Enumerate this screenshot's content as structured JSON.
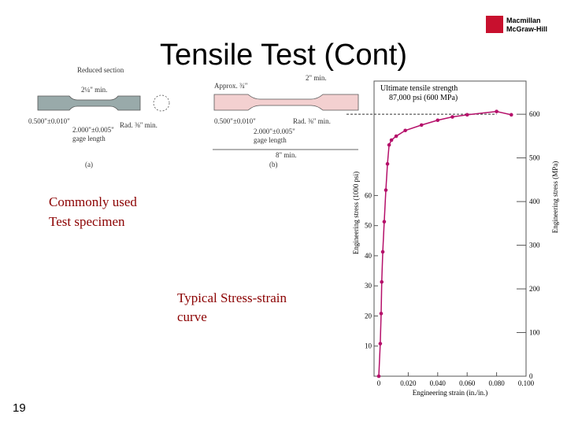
{
  "slide": {
    "title": "Tensile Test (Cont)",
    "logo": [
      "Macmillan",
      "McGraw-Hill"
    ],
    "caption_specimen": [
      "Commonly used",
      "Test specimen"
    ],
    "caption_curve": [
      "Typical Stress-strain",
      "curve"
    ],
    "page_number": "19",
    "specimen_labels": [
      "Reduced section",
      "2¼\" min.",
      "0.500\"±0.010\"",
      "2.000\"±0.005\"",
      "gage length",
      "Rad. ⅜\" min.",
      "(a)",
      "Approx. ¾\"",
      "2\" min.",
      "8\" min.",
      "(b)"
    ]
  },
  "chart_data": {
    "type": "line",
    "annotations": [
      "Ultimate tensile strength",
      "87,000 psi (600 MPa)"
    ],
    "x_label": "Engineering strain (in./in.)",
    "y_label": "Engineering stress (1000 psi)",
    "y2_label": "Engineering stress (MPa)",
    "x": [
      0,
      0.001,
      0.0016,
      0.002,
      0.0027,
      0.0037,
      0.0048,
      0.0059,
      0.007,
      0.0086,
      0.0118,
      0.018,
      0.029,
      0.04,
      0.05,
      0.06,
      0.08,
      0.09
    ],
    "series": [
      {
        "color": "#b5106a",
        "values": [
          0,
          10.8,
          20.8,
          31.3,
          41.3,
          51.3,
          61.8,
          70.5,
          76.8,
          78.4,
          79.7,
          81.6,
          83.4,
          85,
          86.1,
          86.8,
          87.9,
          86.8
        ]
      }
    ],
    "uts": 87,
    "xlim": [
      0,
      0.1
    ],
    "xticks": [
      0,
      {
        "value": 0.02,
        "label": "0.020"
      },
      {
        "value": 0.04,
        "label": "0.040"
      },
      {
        "value": 0.06,
        "label": "0.060"
      },
      {
        "value": 0.08,
        "label": "0.080"
      },
      {
        "value": 0.1,
        "label": "0.100"
      }
    ],
    "ylim": [
      0,
      98
    ],
    "yticks": [
      10,
      20,
      30,
      40,
      50,
      60
    ],
    "y2lim": [
      0,
      676
    ],
    "y2ticks": [
      0,
      100,
      200,
      300,
      400,
      500,
      600
    ]
  }
}
